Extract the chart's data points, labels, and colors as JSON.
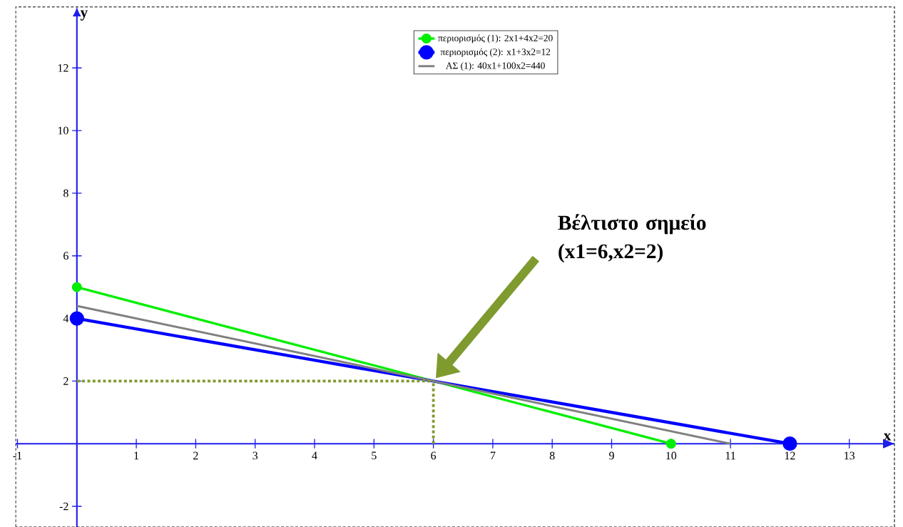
{
  "chart_data": {
    "type": "line",
    "xlabel": "x",
    "ylabel": "y",
    "xlim": [
      -1.03,
      13.76
    ],
    "ylim": [
      -2.66,
      13.95
    ],
    "xticks": [
      -1,
      1,
      2,
      3,
      4,
      5,
      6,
      7,
      8,
      9,
      10,
      11,
      12,
      13
    ],
    "yticks": [
      -2,
      2,
      4,
      6,
      8,
      10,
      12
    ],
    "series": [
      {
        "name": "περιορισμός (1): 2x1+4x2=20",
        "color": "#00ee00",
        "x": [
          0,
          10
        ],
        "values": [
          5,
          0
        ],
        "marker": "circle",
        "line_style": "solid"
      },
      {
        "name": "περιορισμός (2): x1+3x2=12",
        "color": "#0000ff",
        "x": [
          0,
          12
        ],
        "values": [
          4,
          0
        ],
        "marker": "circle",
        "line_style": "solid"
      },
      {
        "name": "ΑΣ (1): 40x1+100x2=440",
        "color": "#808080",
        "x": [
          0,
          11
        ],
        "values": [
          4.4,
          0
        ],
        "marker": "none",
        "line_style": "solid"
      },
      {
        "color": "#7f9a2e",
        "x": [
          0,
          6
        ],
        "values": [
          2,
          2
        ],
        "marker": "none",
        "line_style": "dotted"
      },
      {
        "color": "#7f9a2e",
        "x": [
          6,
          6
        ],
        "values": [
          0,
          2
        ],
        "marker": "none",
        "line_style": "dotted"
      }
    ],
    "annotations": [
      "Βέλτιστο σημείο (x1=6,x2=2)"
    ],
    "legend": "top",
    "grid": false
  }
}
